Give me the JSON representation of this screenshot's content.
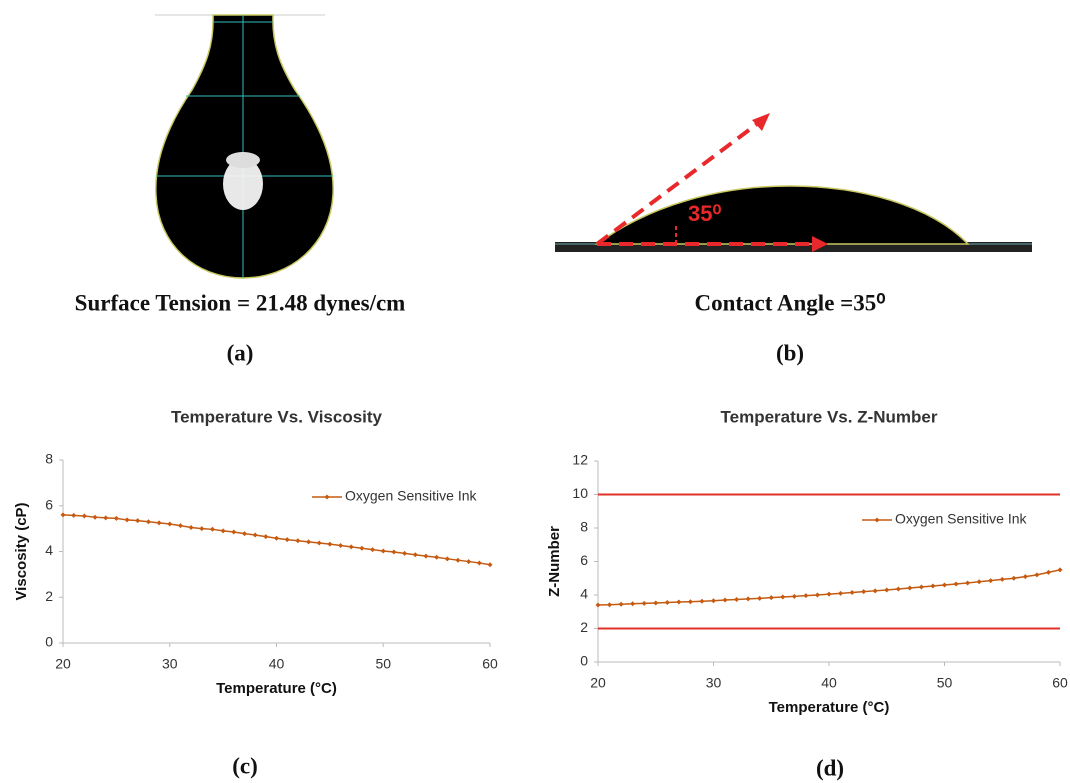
{
  "panels": {
    "a": {
      "caption": "Surface Tension = 21.48 dynes/cm",
      "label": "(a)"
    },
    "b": {
      "caption": "Contact Angle =35⁰",
      "label": "(b)",
      "angle_annotation": "35⁰"
    },
    "c": {
      "label": "(c)"
    },
    "d": {
      "label": "(d)"
    }
  },
  "chart_data": [
    {
      "type": "line",
      "title": "Temperature Vs. Viscosity",
      "x_label": "Temperature (°C)",
      "y_label": "Viscosity (cP)",
      "x": [
        20,
        21,
        22,
        23,
        24,
        25,
        26,
        27,
        28,
        29,
        30,
        31,
        32,
        33,
        34,
        35,
        36,
        37,
        38,
        39,
        40,
        41,
        42,
        43,
        44,
        45,
        46,
        47,
        48,
        49,
        50,
        51,
        52,
        53,
        54,
        55,
        56,
        57,
        58,
        59,
        60
      ],
      "series": [
        {
          "name": "Oxygen Sensitive Ink",
          "color": "#c55a11",
          "values": [
            5.6,
            5.58,
            5.55,
            5.5,
            5.47,
            5.45,
            5.38,
            5.35,
            5.3,
            5.25,
            5.2,
            5.13,
            5.05,
            5.0,
            4.97,
            4.9,
            4.85,
            4.78,
            4.72,
            4.65,
            4.58,
            4.52,
            4.47,
            4.42,
            4.37,
            4.32,
            4.26,
            4.2,
            4.14,
            4.08,
            4.02,
            3.98,
            3.92,
            3.86,
            3.8,
            3.75,
            3.68,
            3.62,
            3.56,
            3.5,
            3.42
          ]
        }
      ],
      "xlim": [
        20,
        60
      ],
      "xticks": [
        20,
        30,
        40,
        50,
        60
      ],
      "ylim": [
        0,
        8
      ],
      "yticks": [
        0,
        2,
        4,
        6,
        8
      ],
      "legend": "upper right"
    },
    {
      "type": "line",
      "title": "Temperature Vs. Z-Number",
      "x_label": "Temperature (°C)",
      "y_label": "Z-Number",
      "x": [
        20,
        21,
        22,
        23,
        24,
        25,
        26,
        27,
        28,
        29,
        30,
        31,
        32,
        33,
        34,
        35,
        36,
        37,
        38,
        39,
        40,
        41,
        42,
        43,
        44,
        45,
        46,
        47,
        48,
        49,
        50,
        51,
        52,
        53,
        54,
        55,
        56,
        57,
        58,
        59,
        60
      ],
      "series": [
        {
          "name": "Oxygen Sensitive Ink",
          "color": "#c55a11",
          "values": [
            3.4,
            3.42,
            3.45,
            3.48,
            3.5,
            3.52,
            3.55,
            3.58,
            3.6,
            3.63,
            3.66,
            3.7,
            3.73,
            3.77,
            3.8,
            3.84,
            3.88,
            3.92,
            3.96,
            4.0,
            4.05,
            4.1,
            4.15,
            4.2,
            4.25,
            4.3,
            4.36,
            4.42,
            4.48,
            4.54,
            4.6,
            4.66,
            4.72,
            4.79,
            4.86,
            4.93,
            5.0,
            5.1,
            5.2,
            5.35,
            5.5
          ]
        }
      ],
      "reference_lines": [
        10,
        2
      ],
      "reference_color": "#e0302a",
      "xlim": [
        20,
        60
      ],
      "xticks": [
        20,
        30,
        40,
        50,
        60
      ],
      "ylim": [
        0,
        12
      ],
      "yticks": [
        0,
        2,
        4,
        6,
        8,
        10,
        12
      ],
      "legend": "upper right"
    }
  ]
}
